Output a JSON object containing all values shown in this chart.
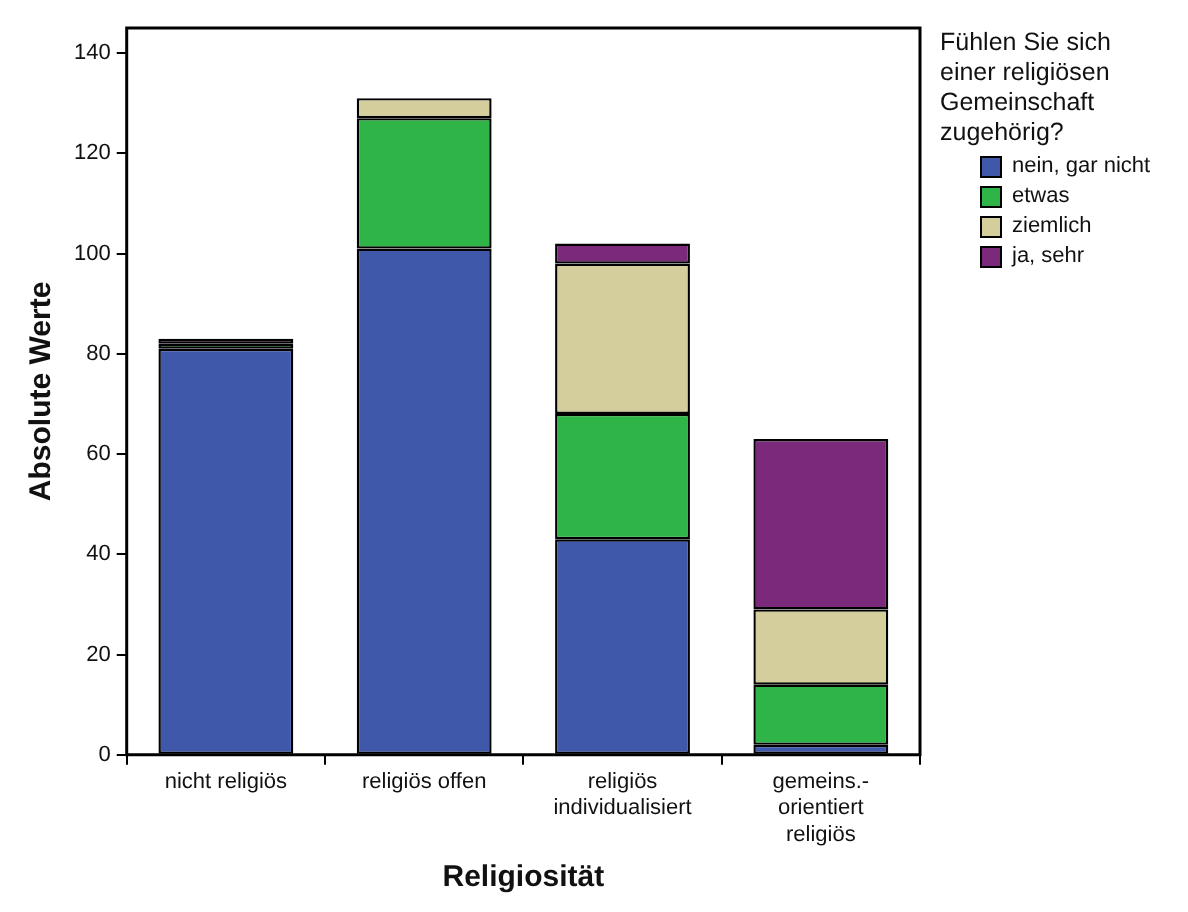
{
  "chart_data": {
    "type": "bar",
    "stacked": true,
    "xlabel": "Religiosität",
    "ylabel": "Absolute Werte",
    "legend_title": "Fühlen Sie sich einer religiösen Gemeinschaft zugehörig?",
    "legend": "right",
    "grid": false,
    "categories": [
      "nicht religiös",
      "religiös offen",
      "religiös individualisiert",
      "gemeins.-orientiert religiös"
    ],
    "ylim": [
      0,
      145
    ],
    "yticks": [
      0,
      20,
      40,
      60,
      80,
      100,
      120,
      140
    ],
    "series": [
      {
        "name": "nein, gar nicht",
        "color": "#3f58aa",
        "values": [
          81,
          101,
          43,
          2
        ]
      },
      {
        "name": "etwas",
        "color": "#2fb547",
        "values": [
          1,
          26,
          25,
          12
        ]
      },
      {
        "name": "ziemlich",
        "color": "#d3ce9b",
        "values": [
          0,
          4,
          30,
          15
        ]
      },
      {
        "name": "ja, sehr",
        "color": "#7b2a7b",
        "values": [
          1,
          0,
          4,
          34
        ]
      }
    ]
  }
}
